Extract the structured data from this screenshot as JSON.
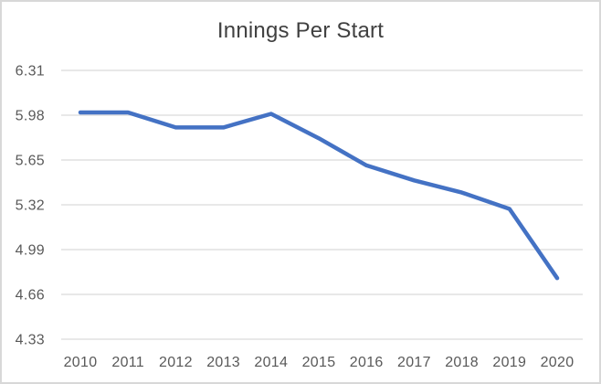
{
  "chart_data": {
    "type": "line",
    "title": "Innings Per Start",
    "categories": [
      "2010",
      "2011",
      "2012",
      "2013",
      "2014",
      "2015",
      "2016",
      "2017",
      "2018",
      "2019",
      "2020"
    ],
    "series": [
      {
        "name": "Innings Per Start",
        "values": [
          6.0,
          6.0,
          5.89,
          5.89,
          5.99,
          5.81,
          5.61,
          5.5,
          5.41,
          5.29,
          4.78
        ]
      }
    ],
    "xlabel": "",
    "ylabel": "",
    "ylim": [
      4.33,
      6.31
    ],
    "yticks": [
      6.31,
      5.98,
      5.65,
      5.32,
      4.99,
      4.66,
      4.33
    ],
    "ytick_decimals": 2,
    "grid": true,
    "legend_position": "none",
    "colors": {
      "line": "#4472C4",
      "gridline": "#d9d9d9",
      "tick_text": "#595959",
      "title_text": "#404040",
      "background": "#ffffff",
      "frame_border": "#d8d8d8"
    }
  }
}
